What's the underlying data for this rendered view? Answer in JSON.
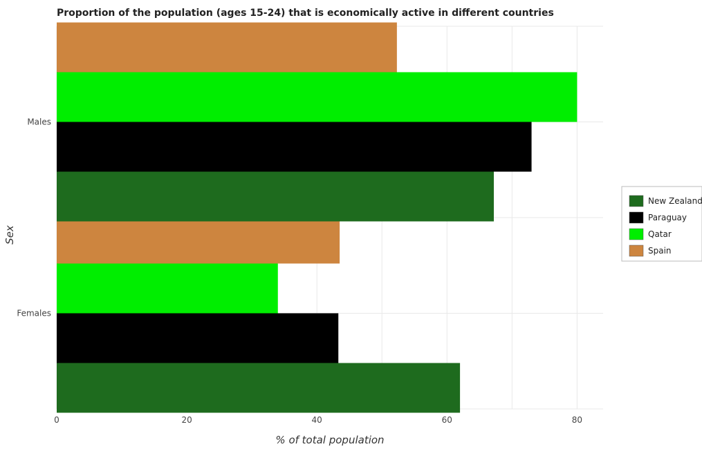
{
  "chart_data": {
    "type": "bar",
    "orientation": "horizontal",
    "title": "Proportion of the population (ages 15-24) that is economically active in different countries",
    "xlabel": "% of total population",
    "ylabel": "Sex",
    "xlim": [
      0,
      84
    ],
    "x_ticks": [
      0,
      20,
      40,
      60,
      80
    ],
    "categories": [
      "Females",
      "Males"
    ],
    "series": [
      {
        "name": "New Zealand",
        "color": "#1e6b1e",
        "values": [
          62.0,
          67.2
        ]
      },
      {
        "name": "Paraguay",
        "color": "#000000",
        "values": [
          43.3,
          73.0
        ]
      },
      {
        "name": "Qatar",
        "color": "#00ee00",
        "values": [
          34.0,
          80.0
        ]
      },
      {
        "name": "Spain",
        "color": "#cd853f",
        "values": [
          43.5,
          52.3
        ]
      }
    ],
    "grid": true,
    "legend_position": "right"
  }
}
